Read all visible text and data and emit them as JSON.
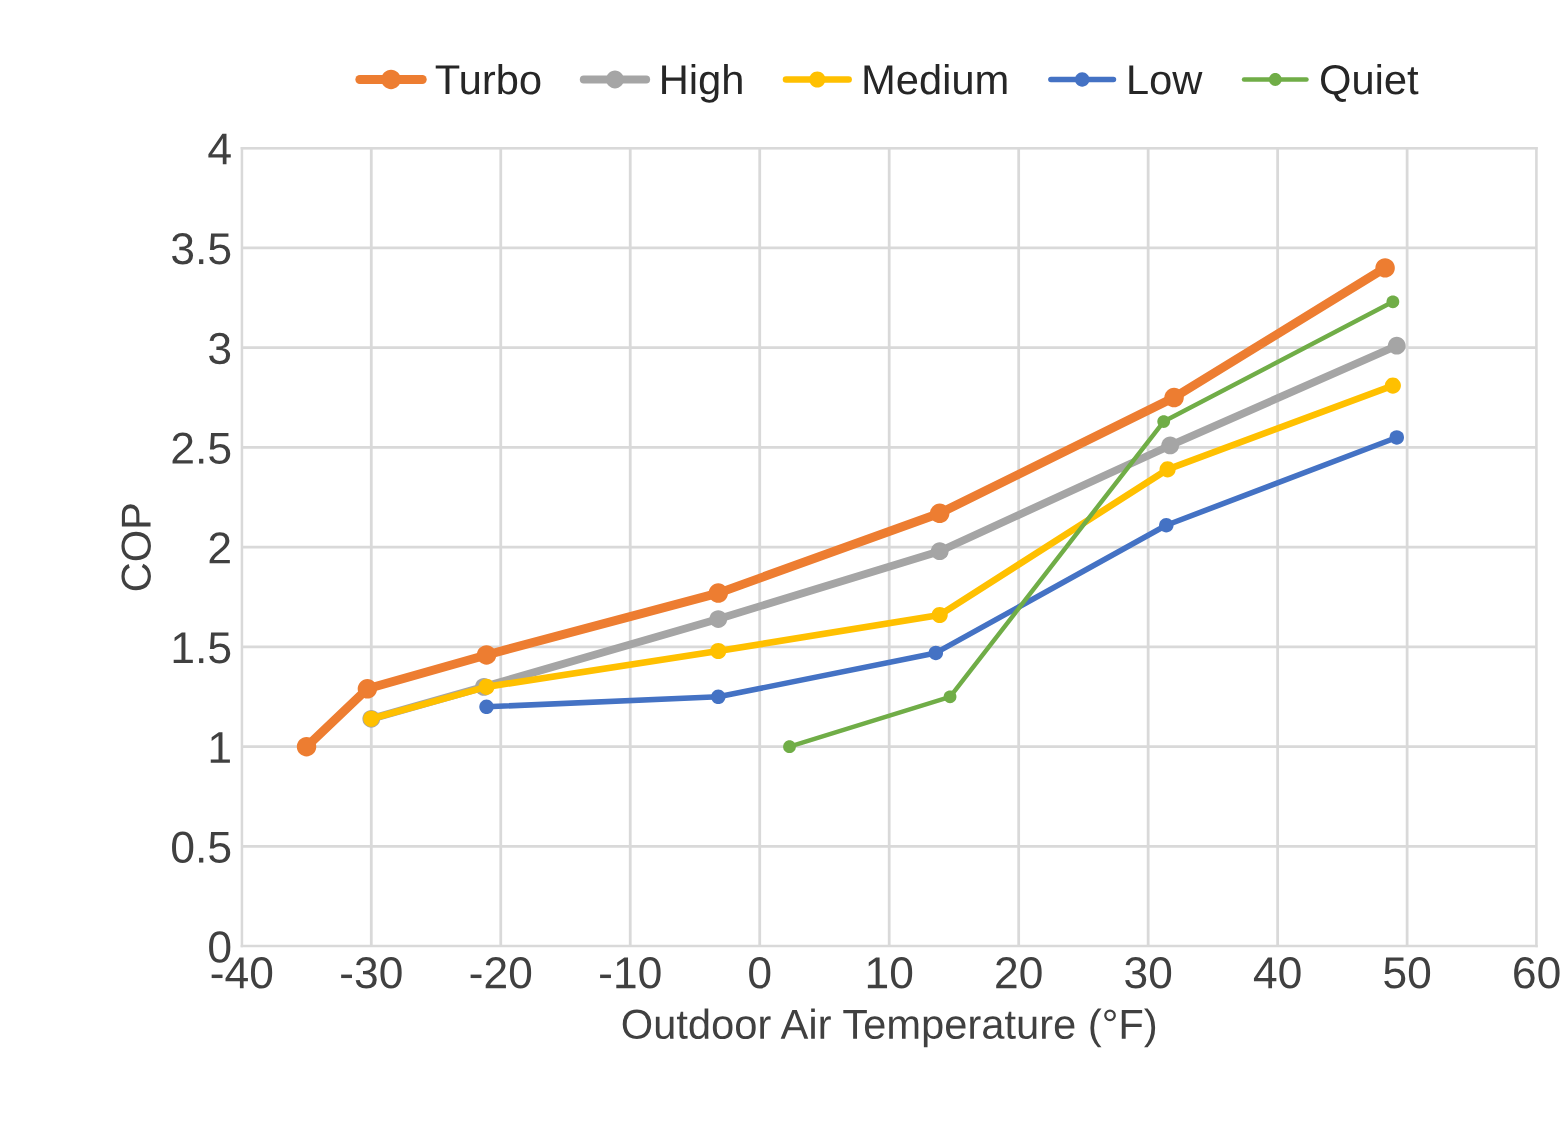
{
  "chart_data": {
    "type": "line",
    "xlabel": "Outdoor Air Temperature (°F)",
    "ylabel": "COP",
    "xlim": [
      -40,
      60
    ],
    "xticks": [
      -40,
      -30,
      -20,
      -10,
      0,
      10,
      20,
      30,
      40,
      50,
      60
    ],
    "ylim": [
      0,
      4
    ],
    "yticks": [
      0,
      0.5,
      1,
      1.5,
      2,
      2.5,
      3,
      3.5,
      4
    ],
    "grid": true,
    "legend": "top",
    "marker": "circle",
    "line_style": "solid",
    "series": [
      {
        "name": "Turbo",
        "color": "#ed7d31",
        "x": [
          -35,
          -30.3,
          -21.1,
          -3.2,
          13.9,
          32,
          48.3
        ],
        "values": [
          1.0,
          1.29,
          1.46,
          1.77,
          2.17,
          2.75,
          3.4
        ]
      },
      {
        "name": "High",
        "color": "#a5a5a5",
        "x": [
          -30,
          -21.3,
          -3.2,
          13.9,
          31.7,
          49.2
        ],
        "values": [
          1.14,
          1.3,
          1.64,
          1.98,
          2.51,
          3.01
        ]
      },
      {
        "name": "Medium",
        "color": "#ffc000",
        "x": [
          -30,
          -21.1,
          -3.2,
          13.9,
          31.5,
          48.9
        ],
        "values": [
          1.14,
          1.3,
          1.48,
          1.66,
          2.39,
          2.81
        ]
      },
      {
        "name": "Low",
        "color": "#4472c4",
        "x": [
          -21.1,
          -3.2,
          13.6,
          31.4,
          49.2
        ],
        "values": [
          1.2,
          1.25,
          1.47,
          2.11,
          2.55
        ]
      },
      {
        "name": "Quiet",
        "color": "#70ad47",
        "x": [
          2.3,
          14.7,
          31.2,
          48.9
        ],
        "values": [
          1.0,
          1.25,
          2.63,
          3.23
        ]
      }
    ]
  }
}
